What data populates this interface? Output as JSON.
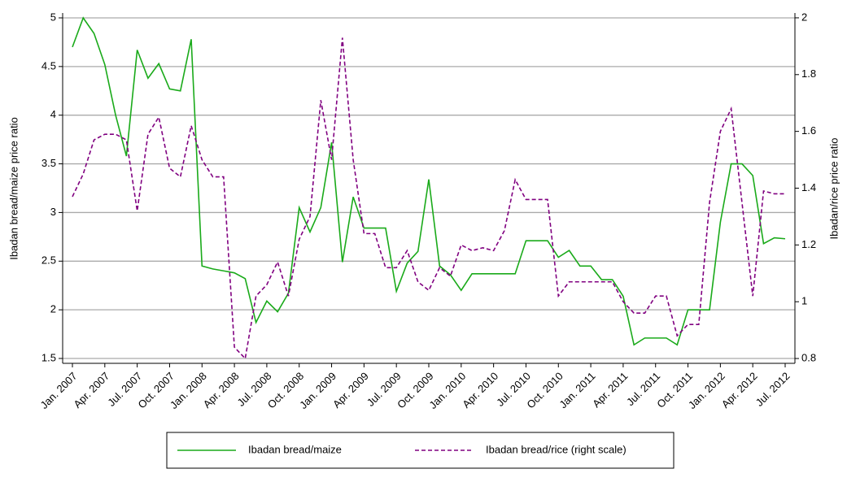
{
  "chart_data": {
    "type": "line",
    "categories": [
      "Jan. 2007",
      null,
      null,
      "Apr. 2007",
      null,
      null,
      "Jul. 2007",
      null,
      null,
      "Oct. 2007",
      null,
      null,
      "Jan. 2008",
      null,
      null,
      "Apr. 2008",
      null,
      null,
      "Jul. 2008",
      null,
      null,
      "Oct. 2008",
      null,
      null,
      "Jan. 2009",
      null,
      null,
      "Apr. 2009",
      null,
      null,
      "Jul. 2009",
      null,
      null,
      "Oct. 2009",
      null,
      null,
      "Jan. 2010",
      null,
      null,
      "Apr. 2010",
      null,
      null,
      "Jul. 2010",
      null,
      null,
      "Oct. 2010",
      null,
      null,
      "Jan. 2011",
      null,
      null,
      "Apr. 2011",
      null,
      null,
      "Jul. 2011",
      null,
      null,
      "Oct. 2011",
      null,
      null,
      "Jan. 2012",
      null,
      null,
      "Apr. 2012",
      null,
      null,
      "Jul. 2012"
    ],
    "y_label": "Ibadan bread/maize price ratio",
    "y2_label": "Ibadan/rice price ratio",
    "ylim": [
      1.45,
      5.05
    ],
    "yticks": [
      1.5,
      2.0,
      2.5,
      3.0,
      3.5,
      4.0,
      4.5,
      5.0
    ],
    "y2lim": [
      0.783,
      2.017
    ],
    "y2ticks": [
      0.8,
      1.0,
      1.2,
      1.4,
      1.6,
      1.8,
      2.0
    ],
    "grid": true,
    "series": [
      {
        "name": "Ibadan bread/maize",
        "color": "#1aaa1a",
        "dash": false,
        "values": [
          4.7,
          5.0,
          4.84,
          4.52,
          4.0,
          3.58,
          4.67,
          4.38,
          4.53,
          4.27,
          4.25,
          4.78,
          2.45,
          2.42,
          2.4,
          2.38,
          2.32,
          1.87,
          2.09,
          1.98,
          2.17,
          3.05,
          2.8,
          3.05,
          3.72,
          2.49,
          3.16,
          2.84,
          2.84,
          2.84,
          2.19,
          2.48,
          2.6,
          3.34,
          2.45,
          2.36,
          2.2,
          2.37,
          2.37,
          2.37,
          2.37,
          2.37,
          2.71,
          2.71,
          2.71,
          2.54,
          2.61,
          2.45,
          2.45,
          2.31,
          2.31,
          2.14,
          1.64,
          1.71,
          1.71,
          1.71,
          1.64,
          2.0,
          2.0,
          2.0,
          2.9,
          3.5,
          3.5,
          3.38,
          2.68,
          2.74,
          2.73
        ]
      },
      {
        "name": "Ibadan bread/rice (right scale)",
        "color": "#800080",
        "dash": true,
        "axis": "y2",
        "values": [
          1.37,
          1.45,
          1.57,
          1.59,
          1.59,
          1.57,
          1.32,
          1.59,
          1.65,
          1.47,
          1.44,
          1.62,
          1.5,
          1.44,
          1.44,
          0.84,
          0.8,
          1.02,
          1.06,
          1.14,
          1.02,
          1.22,
          1.3,
          1.71,
          1.5,
          1.93,
          1.5,
          1.24,
          1.24,
          1.12,
          1.12,
          1.18,
          1.07,
          1.04,
          1.12,
          1.09,
          1.2,
          1.18,
          1.19,
          1.18,
          1.25,
          1.43,
          1.36,
          1.36,
          1.36,
          1.02,
          1.07,
          1.07,
          1.07,
          1.07,
          1.07,
          1.0,
          0.96,
          0.96,
          1.02,
          1.02,
          0.88,
          0.92,
          0.92,
          1.35,
          1.6,
          1.68,
          1.35,
          1.02,
          1.39,
          1.38,
          1.38
        ]
      }
    ]
  }
}
